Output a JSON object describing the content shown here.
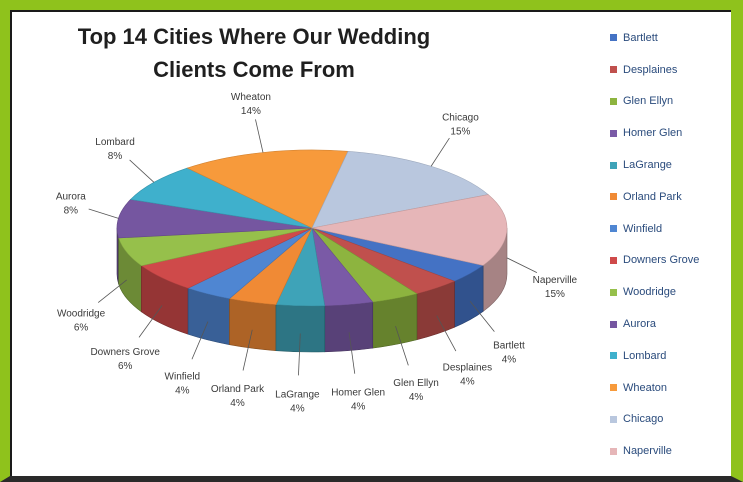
{
  "chart_data": {
    "type": "pie",
    "style": "3d-exploded-none",
    "title": "Top 14 Cities Where Our Wedding Clients Come From",
    "legend_position": "right",
    "slices": [
      {
        "name": "Bartlett",
        "value": 4,
        "label": "4%",
        "color": "#4472c4"
      },
      {
        "name": "Desplaines",
        "value": 4,
        "label": "4%",
        "color": "#c0504d"
      },
      {
        "name": "Glen Ellyn",
        "value": 4,
        "label": "4%",
        "color": "#8db43f"
      },
      {
        "name": "Homer Glen",
        "value": 4,
        "label": "4%",
        "color": "#7a5aa6"
      },
      {
        "name": "LaGrange",
        "value": 4,
        "label": "4%",
        "color": "#3ea3b8"
      },
      {
        "name": "Orland Park",
        "value": 4,
        "label": "4%",
        "color": "#f08a35"
      },
      {
        "name": "Winfield",
        "value": 4,
        "label": "4%",
        "color": "#4f86d2"
      },
      {
        "name": "Downers Grove",
        "value": 6,
        "label": "6%",
        "color": "#cf4a4a"
      },
      {
        "name": "Woodridge",
        "value": 6,
        "label": "6%",
        "color": "#96c04b"
      },
      {
        "name": "Aurora",
        "value": 8,
        "label": "8%",
        "color": "#7556a0"
      },
      {
        "name": "Lombard",
        "value": 8,
        "label": "8%",
        "color": "#3fb0cc"
      },
      {
        "name": "Wheaton",
        "value": 14,
        "label": "14%",
        "color": "#f79a3b"
      },
      {
        "name": "Chicago",
        "value": 15,
        "label": "15%",
        "color": "#b9c7de"
      },
      {
        "name": "Naperville",
        "value": 15,
        "label": "15%",
        "color": "#e6b6b8"
      }
    ]
  }
}
